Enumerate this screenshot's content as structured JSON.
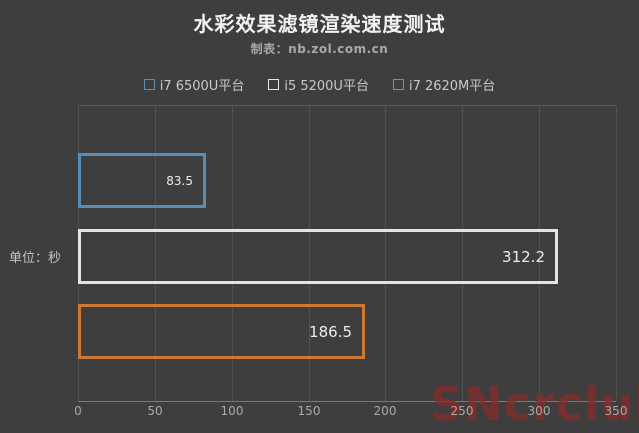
{
  "header": {
    "title": "水彩效果滤镜渲染速度测试",
    "subtitle": "制表：nb.zol.com.cn"
  },
  "chart_data": {
    "type": "bar",
    "orientation": "horizontal",
    "title": "水彩效果滤镜渲染速度测试",
    "subtitle": "制表：nb.zol.com.cn",
    "unit_label": "单位：秒",
    "series": [
      {
        "name": "i7 6500U平台",
        "value": 83.5,
        "color": "#5a8cba"
      },
      {
        "name": "i5 5200U平台",
        "value": 312.2,
        "color": "#e4e4e4"
      },
      {
        "name": "i7 2620M平台",
        "value": 186.5,
        "color": "#cc7a33"
      }
    ],
    "xlim": [
      0,
      350
    ],
    "x_ticks": [
      0,
      50,
      100,
      150,
      200,
      250,
      300,
      350
    ],
    "grid": true,
    "bar_style": "outlined",
    "legend_position": "top"
  },
  "watermark": {
    "text": "SNcrclub",
    "color": "#8b2a2a",
    "note_partially_clipped": true
  },
  "colors": {
    "background": "#3e3e3e",
    "gridline": "#515151",
    "title_text": "#f2f2f2",
    "subtitle_text": "#a8a8a8",
    "axis_text": "#a9a9a9",
    "value_text": "#ececec"
  }
}
